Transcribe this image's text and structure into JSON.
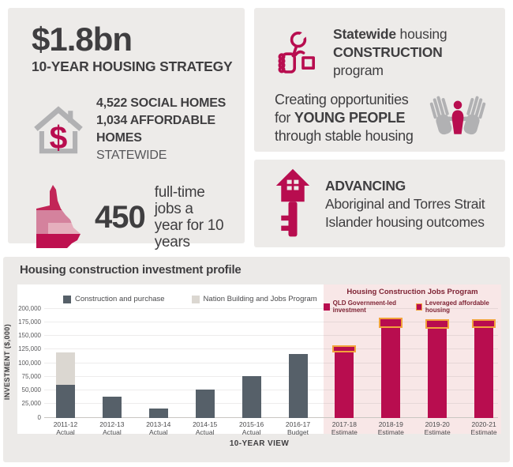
{
  "panels": {
    "strategy": {
      "amount": "$1.8bn",
      "subtitle": "10-YEAR HOUSING STRATEGY",
      "homes": {
        "line1": "4,522 SOCIAL HOMES",
        "line2": "1,034 AFFORDABLE HOMES",
        "line3": "STATEWIDE"
      },
      "jobs": {
        "number": "450",
        "line1": "full-time jobs a",
        "line2": "year for 10 years"
      }
    },
    "construction": {
      "title_bold1": "Statewide",
      "title_reg1": " housing",
      "title_bold2": "CONSTRUCTION",
      "title_reg2": " program",
      "young_line1": "Creating opportunities",
      "young_line2_pre": "for ",
      "young_line2_bold": "YOUNG PEOPLE",
      "young_line3": "through stable housing"
    },
    "advancing": {
      "bold": "ADVANCING",
      "line1": "Aboriginal and Torres Strait",
      "line2": "Islander housing outcomes"
    }
  },
  "chart_data": {
    "type": "bar",
    "title": "Housing construction investment profile",
    "ylabel": "INVESTMENT ($,000)",
    "xlabel": "10-YEAR VIEW",
    "ylim": [
      0,
      200000
    ],
    "ytick_step": 25000,
    "grid": true,
    "categories": [
      "2011-12",
      "2012-13",
      "2013-14",
      "2014-15",
      "2015-16",
      "2016-17",
      "2017-18",
      "2018-19",
      "2019-20",
      "2020-21"
    ],
    "category_types": [
      "Actual",
      "Actual",
      "Actual",
      "Actual",
      "Actual",
      "Budget",
      "Estimate",
      "Estimate",
      "Estimate",
      "Estimate"
    ],
    "series": [
      {
        "name": "Construction and purchase",
        "color": "#566069",
        "values": [
          60000,
          38000,
          16000,
          51000,
          76000,
          116000,
          null,
          null,
          null,
          null
        ]
      },
      {
        "name": "Nation Building and Jobs Program",
        "color": "#DBD7D1",
        "values": [
          60000,
          null,
          null,
          null,
          null,
          null,
          null,
          null,
          null,
          null
        ]
      },
      {
        "name": "QLD Government-led investment",
        "color": "#B80D4F",
        "values": [
          null,
          null,
          null,
          null,
          null,
          null,
          119000,
          165000,
          163000,
          164000
        ]
      },
      {
        "name": "Leveraged affordable housing",
        "color": "#B80D4F",
        "border": "#F2A33C",
        "values": [
          null,
          null,
          null,
          null,
          null,
          null,
          13000,
          18000,
          17000,
          17000
        ]
      }
    ],
    "highlight": {
      "label": "Housing Construction Jobs Program",
      "categories": [
        "2017-18",
        "2018-19",
        "2019-20",
        "2020-21"
      ],
      "background": "#F8E7E7"
    },
    "legend_position": "top"
  },
  "colors": {
    "crimson": "#B80D4F",
    "slate_bar": "#566069",
    "light_bar": "#DBD7D1",
    "orange_outline": "#F2A33C",
    "panel_bg": "#EDEBE9",
    "card_bg": "#ECEAE8",
    "pink_bg": "#F8E7E7",
    "icon_gray": "#B1B1B3",
    "text": "#3F3E40"
  }
}
